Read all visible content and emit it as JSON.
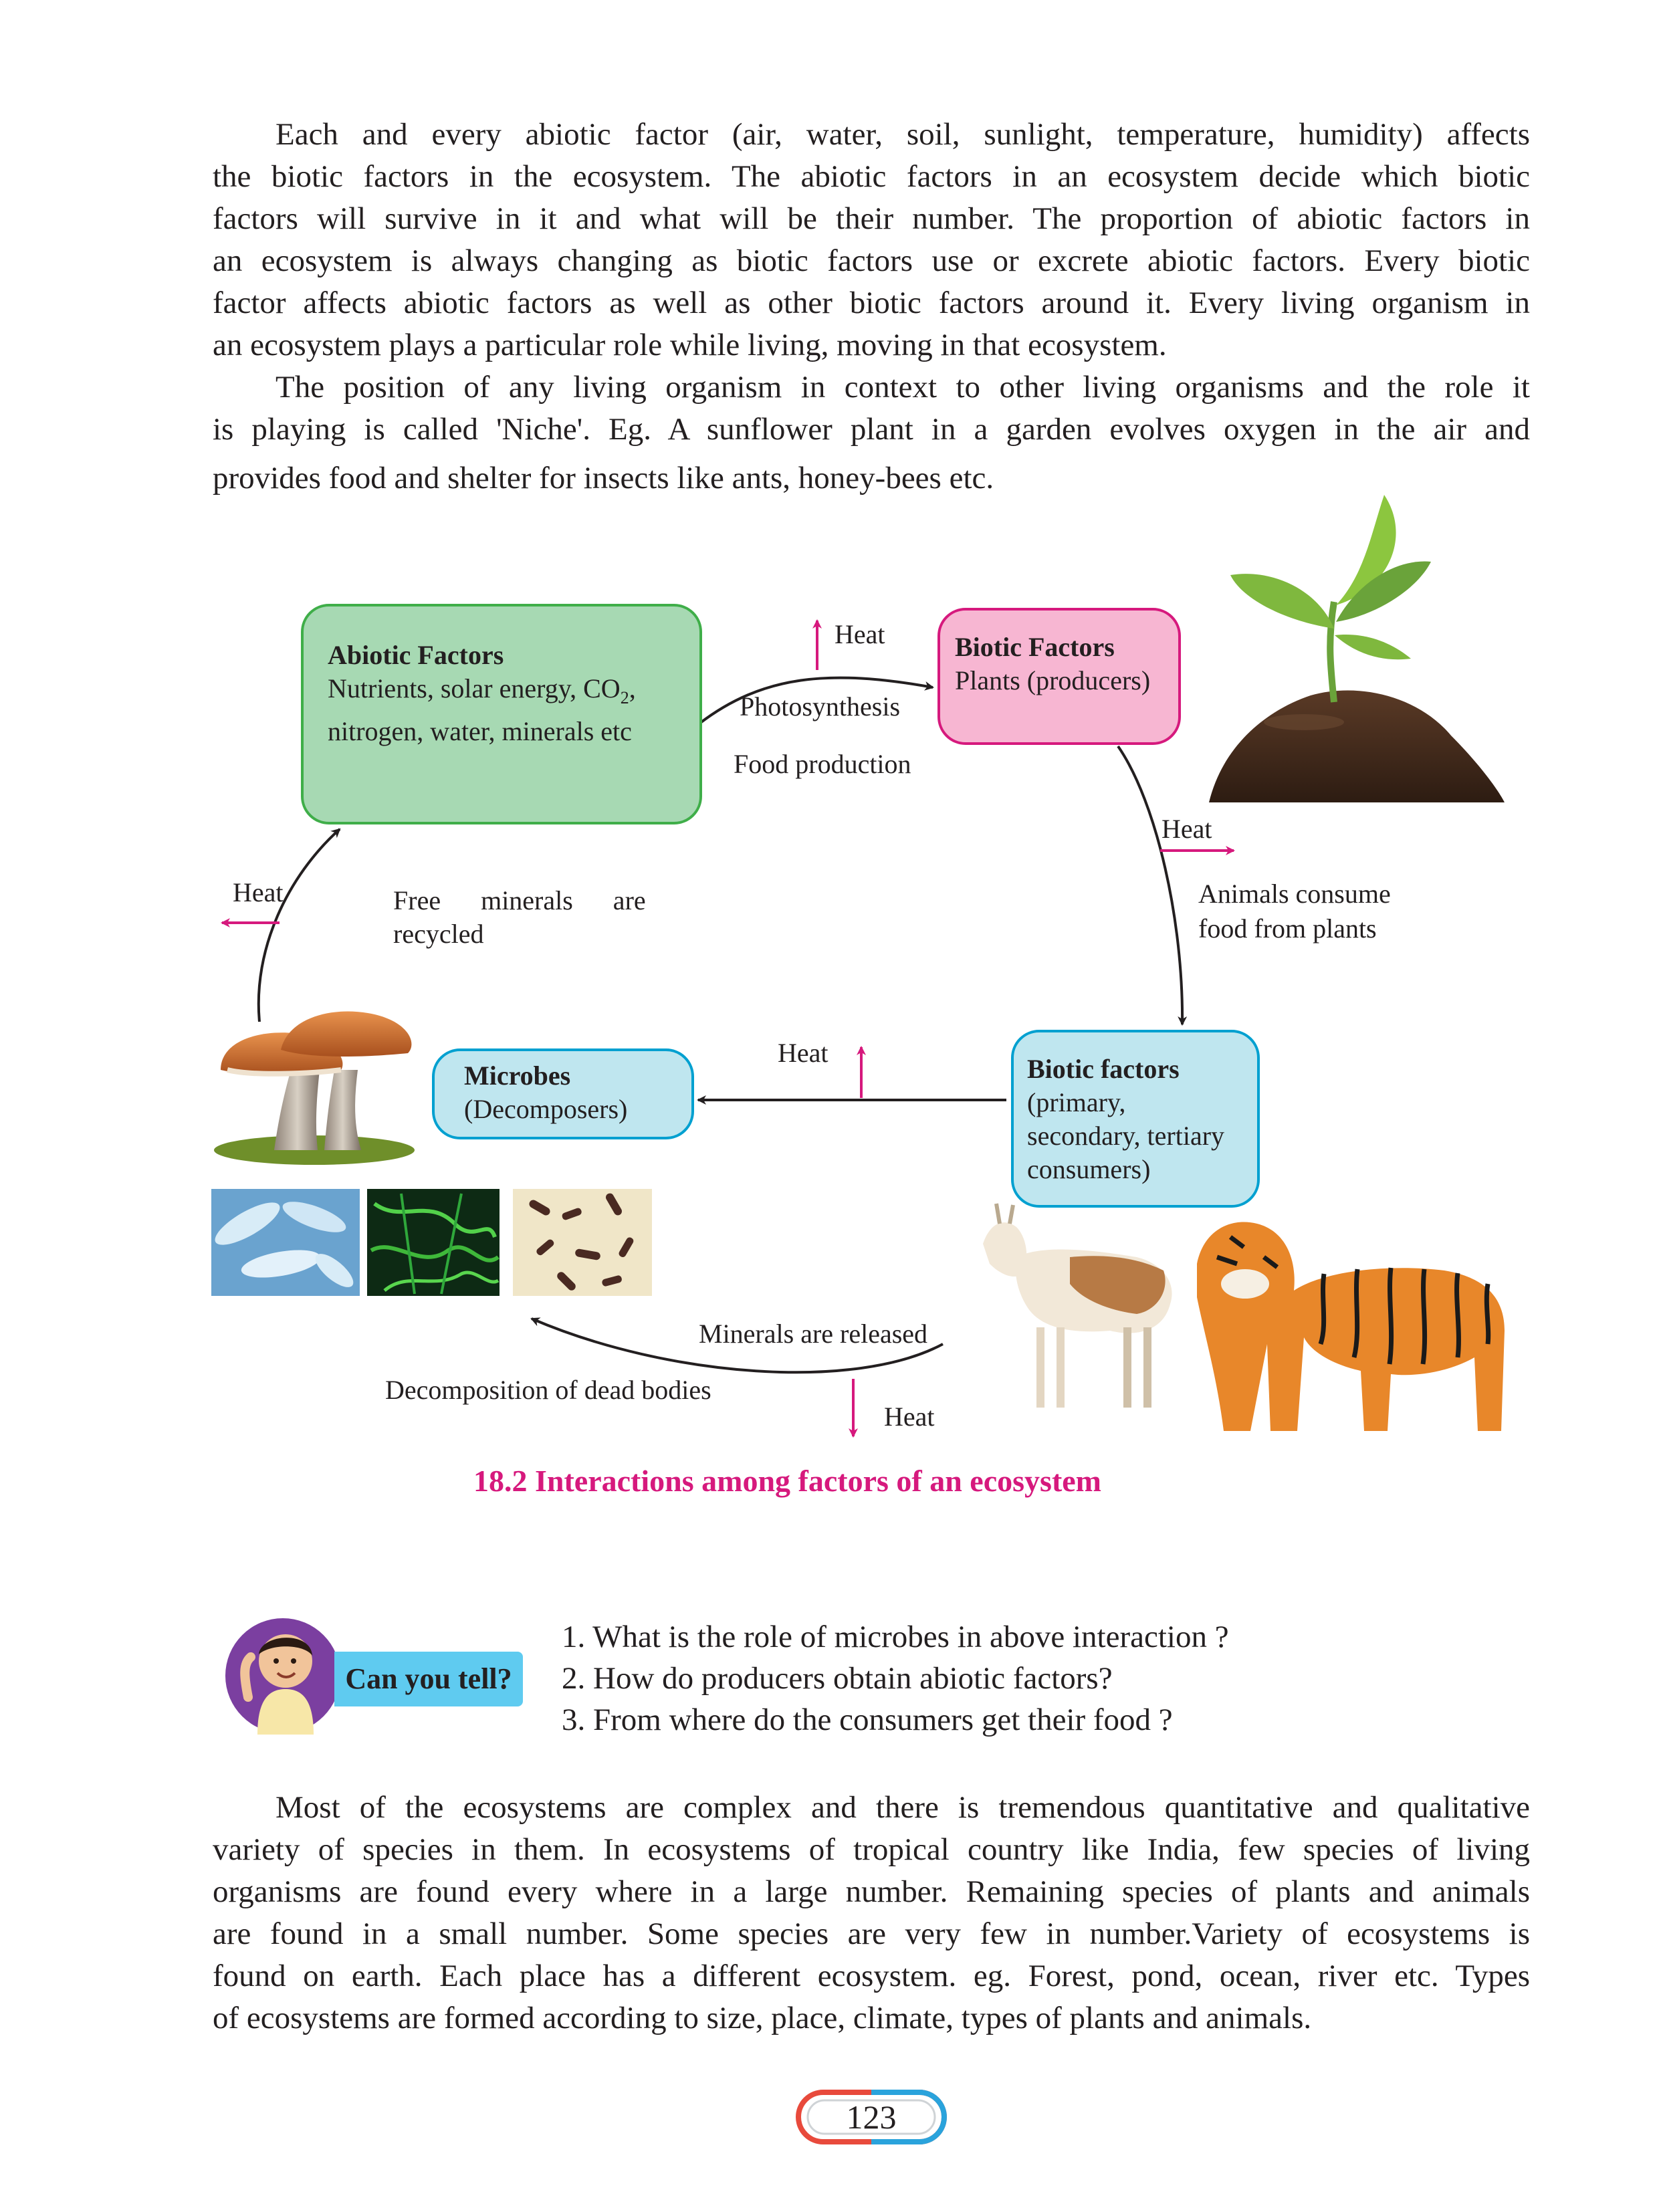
{
  "para1": [
    "Each and every abiotic factor (air, water, soil, sunlight, temperature, humidity) affects",
    "the biotic factors in the ecosystem. The abiotic factors in an ecosystem decide which biotic",
    "factors will survive in it and what will be their number. The proportion of abiotic factors in",
    "an ecosystem is always changing as biotic factors use or excrete abiotic factors. Every biotic",
    "factor affects abiotic factors as well as other biotic factors around it. Every living organism in",
    "an ecosystem plays a particular role while living, moving in that ecosystem."
  ],
  "para2": [
    "The position of any living organism in context to other living organisms and the role it",
    "is playing is called 'Niche'. Eg. A sunflower plant in a garden evolves oxygen in the air and",
    "provides food and shelter for insects like ants, honey-bees etc."
  ],
  "diagram": {
    "abiotic": {
      "title": "Abiotic Factors",
      "line1": "Nutrients, solar energy, CO",
      "line1_sub": "2",
      "line1_end": ",",
      "line2": "nitrogen, water, minerals etc"
    },
    "producer": {
      "title": "Biotic Factors",
      "line1": "Plants (producers)"
    },
    "consumer": {
      "title": "Biotic factors",
      "line1": "(primary,",
      "line2": "secondary, tertiary",
      "line3": "consumers)"
    },
    "microbe": {
      "title": "Microbes",
      "line1": "(Decomposers)"
    },
    "heat": "Heat",
    "photosynthesis": "Photosynthesis",
    "food_production": "Food production",
    "animals_consume_1": "Animals consume",
    "animals_consume_2": "food from plants",
    "free_minerals_1": "Free      minerals      are",
    "free_minerals_2": "recycled",
    "minerals_released": "Minerals are released",
    "decomposition": "Decomposition of dead bodies",
    "caption": "18.2 Interactions among factors of an ecosystem"
  },
  "can_you_tell": {
    "label": "Can you tell?",
    "questions": [
      "1. What is the role of microbes in above interaction ?",
      "2. How do producers obtain abiotic factors?",
      "3. From where do the consumers get their food ?"
    ]
  },
  "para3": [
    "Most of the ecosystems are complex and there is tremendous quantitative and qualitative",
    "variety of species in them. In ecosystems of tropical country like India, few species of living",
    "organisms are found every where in a large number. Remaining species of plants and animals",
    "are found in a small number. Some species are very few in number.Variety of ecosystems is",
    "found on earth. Each place has a different ecosystem. eg. Forest, pond, ocean, river etc. Types",
    "of ecosystems are formed according to size, place, climate, types of plants and animals."
  ],
  "page_number": "123",
  "colors": {
    "heat_arrow": "#d6197d",
    "abiotic_fill": "#a7d9b3",
    "producer_fill": "#f7b6d2",
    "consumer_fill": "#bfe6ef",
    "caption": "#d6197d",
    "badge": "#5fcbf0"
  },
  "icons": [
    "plant-seedling-icon",
    "mushroom-icon",
    "bacteria-icon",
    "goat-icon",
    "tiger-icon",
    "student-avatar-icon"
  ]
}
